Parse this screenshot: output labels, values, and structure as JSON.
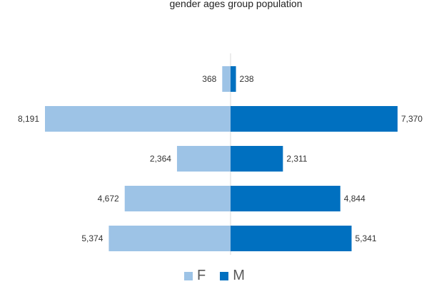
{
  "title": "gender ages group population",
  "chart_data": {
    "type": "bar",
    "orientation": "horizontal",
    "layout": "diverging",
    "categories": [
      "",
      "",
      "",
      "",
      ""
    ],
    "series": [
      {
        "name": "F",
        "values": [
          368,
          8191,
          2364,
          4672,
          5374
        ],
        "labels": [
          "368",
          "8,191",
          "2,364",
          "4,672",
          "5,374"
        ],
        "color": "#9DC3E6"
      },
      {
        "name": "M",
        "values": [
          238,
          7370,
          2311,
          4844,
          5341
        ],
        "labels": [
          "238",
          "7,370",
          "2,311",
          "4,844",
          "5,341"
        ],
        "color": "#0070C0"
      }
    ],
    "xlim": [
      -8500,
      8500
    ],
    "legend": "bottom-center",
    "grid": false
  }
}
